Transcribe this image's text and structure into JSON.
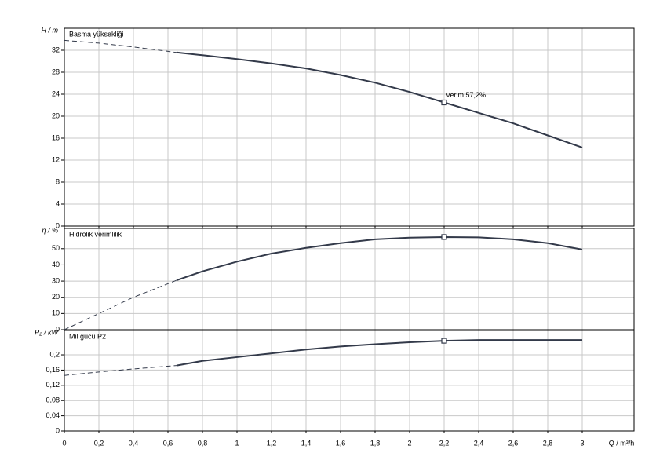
{
  "chart_data": [
    {
      "type": "line",
      "title": "Basma yüksekliği",
      "y_label": "H / m",
      "xlim": [
        0,
        3.3
      ],
      "xticks": [
        0,
        0.2,
        0.4,
        0.6,
        0.8,
        1,
        1.2,
        1.4,
        1.6,
        1.8,
        2,
        2.2,
        2.4,
        2.6,
        2.8,
        3
      ],
      "ylim": [
        0,
        36
      ],
      "yticks": [
        0,
        4,
        8,
        12,
        16,
        20,
        24,
        28,
        32
      ],
      "grid": true,
      "series": [
        {
          "style": "dashed",
          "color": "#333a4a",
          "x": [
            0,
            0.2,
            0.4,
            0.65
          ],
          "values": [
            33.8,
            33.3,
            32.6,
            31.6
          ]
        },
        {
          "style": "solid",
          "color": "#333a4a",
          "x": [
            0.65,
            0.8,
            1,
            1.2,
            1.4,
            1.6,
            1.8,
            2,
            2.2,
            2.4,
            2.6,
            2.8,
            3
          ],
          "values": [
            31.6,
            31.1,
            30.4,
            29.6,
            28.7,
            27.5,
            26.1,
            24.4,
            22.5,
            20.6,
            18.7,
            16.5,
            14.3
          ]
        }
      ],
      "markers": [
        {
          "x": 2.2,
          "y": 22.5,
          "label": "Verim  57,2%"
        }
      ]
    },
    {
      "type": "line",
      "title": "Hidrolik verimlilik",
      "y_label": "η / %",
      "xlim": [
        0,
        3.3
      ],
      "xticks": [
        0,
        0.2,
        0.4,
        0.6,
        0.8,
        1,
        1.2,
        1.4,
        1.6,
        1.8,
        2,
        2.2,
        2.4,
        2.6,
        2.8,
        3
      ],
      "ylim": [
        0,
        62.5
      ],
      "yticks": [
        0,
        10,
        20,
        30,
        40,
        50
      ],
      "grid": true,
      "series": [
        {
          "style": "dashed",
          "color": "#333a4a",
          "x": [
            0,
            0.2,
            0.4,
            0.65
          ],
          "values": [
            0,
            10,
            20,
            30.5
          ]
        },
        {
          "style": "solid",
          "color": "#333a4a",
          "x": [
            0.65,
            0.8,
            1,
            1.2,
            1.4,
            1.6,
            1.8,
            2,
            2.2,
            2.4,
            2.6,
            2.8,
            3
          ],
          "values": [
            30.5,
            36,
            42,
            47,
            50.5,
            53.4,
            55.8,
            56.8,
            57.2,
            57,
            55.8,
            53.4,
            49.5
          ]
        }
      ],
      "markers": [
        {
          "x": 2.2,
          "y": 57.2
        }
      ]
    },
    {
      "type": "line",
      "title": "Mil gücü P2",
      "y_label": "P₂ / kW",
      "x_label": "Q / m³/h",
      "xlim": [
        0,
        3.3
      ],
      "xticks": [
        0,
        {
          "value": 0.2,
          "label": "0,2"
        },
        {
          "value": 0.4,
          "label": "0,4"
        },
        {
          "value": 0.6,
          "label": "0,6"
        },
        {
          "value": 0.8,
          "label": "0,8"
        },
        1,
        {
          "value": 1.2,
          "label": "1,2"
        },
        {
          "value": 1.4,
          "label": "1,4"
        },
        {
          "value": 1.6,
          "label": "1,6"
        },
        {
          "value": 1.8,
          "label": "1,8"
        },
        2,
        {
          "value": 2.2,
          "label": "2,2"
        },
        {
          "value": 2.4,
          "label": "2,4"
        },
        {
          "value": 2.6,
          "label": "2,6"
        },
        {
          "value": 2.8,
          "label": "2,8"
        },
        3
      ],
      "ylim": [
        0,
        0.264
      ],
      "yticks": [
        0,
        {
          "value": 0.04,
          "label": "0,04"
        },
        {
          "value": 0.08,
          "label": "0,08"
        },
        {
          "value": 0.12,
          "label": "0,12"
        },
        {
          "value": 0.16,
          "label": "0,16"
        },
        {
          "value": 0.2,
          "label": "0,2"
        }
      ],
      "grid": true,
      "series": [
        {
          "style": "dashed",
          "color": "#333a4a",
          "x": [
            0,
            0.2,
            0.4,
            0.65
          ],
          "values": [
            0.146,
            0.155,
            0.163,
            0.172
          ]
        },
        {
          "style": "solid",
          "color": "#333a4a",
          "x": [
            0.65,
            0.8,
            1,
            1.2,
            1.4,
            1.6,
            1.8,
            2,
            2.2,
            2.4,
            2.6,
            2.8,
            3
          ],
          "values": [
            0.172,
            0.184,
            0.194,
            0.204,
            0.214,
            0.222,
            0.228,
            0.233,
            0.237,
            0.239,
            0.239,
            0.239,
            0.239
          ]
        }
      ],
      "markers": [
        {
          "x": 2.2,
          "y": 0.237
        }
      ]
    }
  ]
}
